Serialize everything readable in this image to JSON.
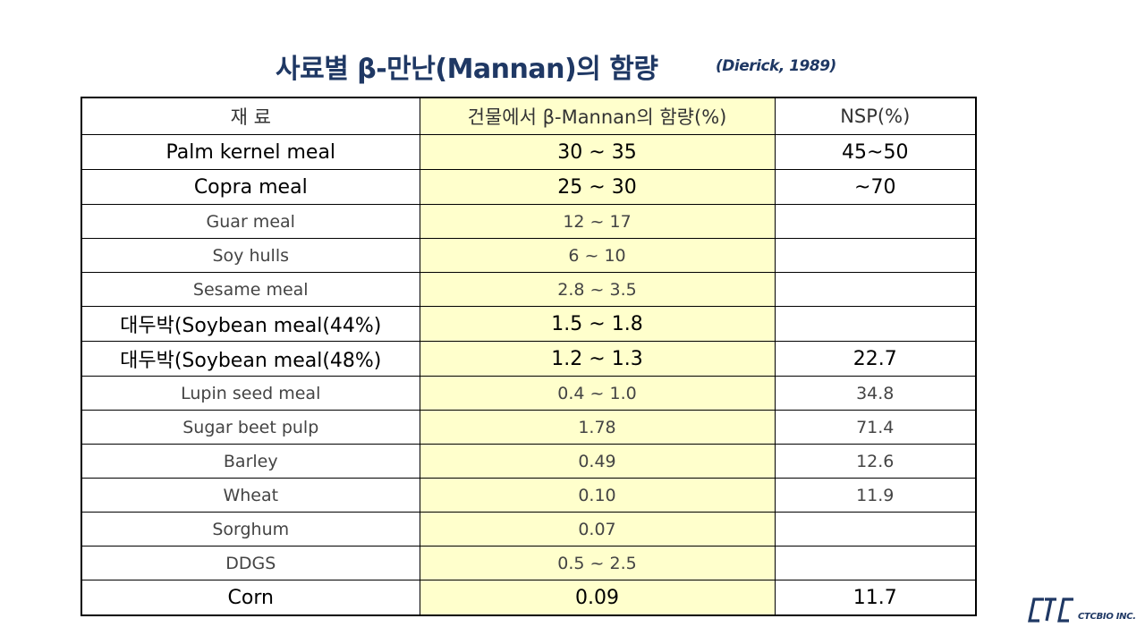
{
  "title": "사료별 β-만난(Mannan)의 함량",
  "citation": "(Dierick, 1989)",
  "table": {
    "headers": [
      "재 료",
      "건물에서 β-Mannan의 함량(%)",
      "NSP(%)"
    ],
    "rows": [
      {
        "material": "Palm kernel meal",
        "mannan": "30 ~ 35",
        "nsp": "45~50"
      },
      {
        "material": "Copra meal",
        "mannan": "25 ~ 30",
        "nsp": "~70"
      },
      {
        "material": "Guar meal",
        "mannan": "12 ~ 17",
        "nsp": ""
      },
      {
        "material": "Soy hulls",
        "mannan": "6 ~ 10",
        "nsp": ""
      },
      {
        "material": "Sesame meal",
        "mannan": "2.8 ~ 3.5",
        "nsp": ""
      },
      {
        "material": "대두박(Soybean meal(44%)",
        "mannan": "1.5 ~ 1.8",
        "nsp": ""
      },
      {
        "material": "대두박(Soybean meal(48%)",
        "mannan": "1.2 ~ 1.3",
        "nsp": "22.7"
      },
      {
        "material": "Lupin seed meal",
        "mannan": "0.4 ~ 1.0",
        "nsp": "34.8"
      },
      {
        "material": "Sugar beet pulp",
        "mannan": "1.78",
        "nsp": "71.4"
      },
      {
        "material": "Barley",
        "mannan": "0.49",
        "nsp": "12.6"
      },
      {
        "material": "Wheat",
        "mannan": "0.10",
        "nsp": "11.9"
      },
      {
        "material": "Sorghum",
        "mannan": "0.07",
        "nsp": ""
      },
      {
        "material": "DDGS",
        "mannan": "0.5 ~ 2.5",
        "nsp": ""
      },
      {
        "material": "Corn",
        "mannan": "0.09",
        "nsp": "11.7"
      }
    ]
  },
  "logo": {
    "text": "CTCBIO INC."
  },
  "colors": {
    "title": "#1f3864",
    "highlight_column": "#ffffcc",
    "logo": "#1f3864"
  }
}
